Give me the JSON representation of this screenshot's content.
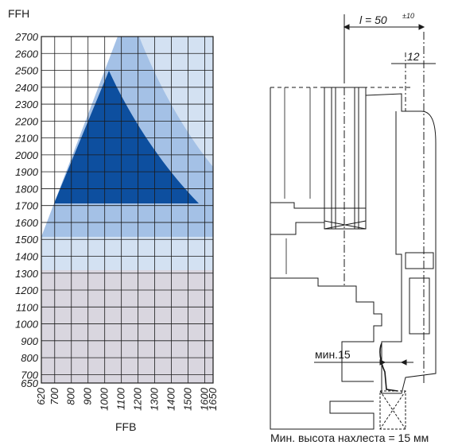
{
  "chart": {
    "y_axis_label": "FFH",
    "x_axis_label": "FFB",
    "y_ticks": [
      2700,
      2600,
      2500,
      2400,
      2300,
      2200,
      2100,
      2000,
      1900,
      1800,
      1700,
      1600,
      1500,
      1400,
      1300,
      1200,
      1100,
      1000,
      900,
      800,
      700,
      650
    ],
    "x_ticks": [
      "620",
      "700",
      "800",
      "900",
      "1000",
      "1100",
      "1200",
      "1300",
      "1400",
      "1500",
      "1600",
      "1650"
    ],
    "colors": {
      "grey_zone": "#d9d6df",
      "light_blue_zone": "#d3e1f2",
      "mid_blue_zone": "#a4c1e6",
      "dark_blue_zone": "#0d4f9f",
      "grid": "#1a1a1a"
    }
  },
  "section": {
    "dim_l": "l = 50",
    "dim_l_tolerance": "±10",
    "dim_12": "12",
    "min_label": "мин.15",
    "caption": "Мин. высота нахлеста = 15 мм"
  }
}
